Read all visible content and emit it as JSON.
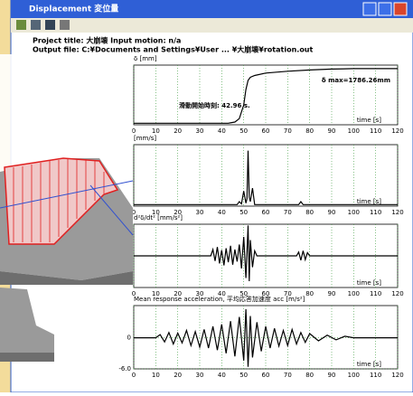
{
  "window": {
    "title": "Displacement 変位量",
    "header": [
      "Project title: 大崩壊  Input motion: n/a",
      "Output file: C:¥Documents and Settings¥User ... ¥大崩壊¥rotation.out"
    ]
  },
  "chart_data": [
    {
      "type": "line",
      "y_label": "δ [mm]",
      "x_label": "time [s]",
      "color": "#000000",
      "annotations": [
        "δ max=1786.26mm",
        "滑動開始時刻: 42.96 s."
      ],
      "x": [
        0,
        10,
        20,
        30,
        40,
        42.96,
        46,
        48,
        50,
        51,
        52,
        53,
        55,
        60,
        70,
        80,
        90,
        100,
        110,
        120
      ],
      "values": [
        0,
        0,
        0,
        0,
        0,
        0,
        40,
        150,
        600,
        1100,
        1400,
        1500,
        1560,
        1640,
        1700,
        1740,
        1770,
        1786,
        1786,
        1786
      ],
      "xlim": [
        0,
        120
      ],
      "ylim": [
        -50,
        1900
      ],
      "xticks": [
        0,
        10,
        20,
        30,
        40,
        50,
        60,
        70,
        80,
        90,
        100,
        110,
        120
      ],
      "grid": true
    },
    {
      "type": "line",
      "y_label": "[mm/s]",
      "x_label": "time [s]",
      "color": "#000000",
      "x": [
        0,
        44,
        47,
        48,
        49,
        50,
        51,
        51.5,
        52,
        52.5,
        53,
        54,
        55,
        58,
        75,
        76,
        77,
        78,
        120
      ],
      "values": [
        0,
        0,
        0,
        4,
        1,
        18,
        2,
        8,
        72,
        10,
        4,
        22,
        0,
        0,
        0,
        4,
        0,
        0,
        0
      ],
      "xlim": [
        0,
        120
      ],
      "ylim": [
        -2,
        80
      ],
      "xticks": [
        0,
        10,
        20,
        30,
        40,
        50,
        60,
        70,
        80,
        90,
        100,
        110,
        120
      ],
      "grid": true
    },
    {
      "type": "line",
      "y_label": "d²δ/dt² [mm/s²]",
      "x_label": "time [s]",
      "color": "#000000",
      "x": [
        0,
        35,
        36,
        37,
        38,
        39,
        40,
        41,
        42,
        43,
        44,
        45,
        46,
        47,
        48,
        49,
        50,
        51,
        52,
        52.5,
        53,
        54,
        55,
        56,
        60,
        74,
        75,
        76,
        77,
        78,
        79,
        80,
        120
      ],
      "values": [
        0,
        0,
        10,
        -8,
        14,
        -12,
        9,
        -15,
        12,
        -10,
        16,
        -14,
        10,
        -9,
        18,
        -20,
        30,
        -35,
        48,
        -40,
        25,
        -18,
        8,
        0,
        0,
        0,
        6,
        -7,
        8,
        -6,
        5,
        0,
        0
      ],
      "xlim": [
        0,
        120
      ],
      "ylim": [
        -50,
        50
      ],
      "xticks": [
        0,
        10,
        20,
        30,
        40,
        50,
        60,
        70,
        80,
        90,
        100,
        110,
        120
      ],
      "grid": true
    },
    {
      "type": "line",
      "y_label": "Mean response acceleration, 平均応答加速度 acc [m/s²]",
      "x_label": "time [s]",
      "color": "#000000",
      "x": [
        0,
        10,
        12,
        14,
        16,
        18,
        20,
        22,
        24,
        26,
        28,
        30,
        32,
        34,
        36,
        38,
        40,
        42,
        44,
        46,
        48,
        50,
        51,
        52,
        53,
        54,
        56,
        58,
        60,
        62,
        64,
        66,
        68,
        70,
        72,
        74,
        76,
        78,
        80,
        84,
        88,
        92,
        96,
        100,
        120
      ],
      "values": [
        0,
        0,
        0.6,
        -0.8,
        1,
        -1.2,
        0.9,
        -1,
        1.4,
        -1.5,
        1.2,
        -1.8,
        1.6,
        -2,
        2.2,
        -2.4,
        2.6,
        -3,
        3.2,
        -3.6,
        4,
        -4.4,
        5.5,
        -5.6,
        4.2,
        -3.8,
        3,
        -2.6,
        2.2,
        -2,
        1.8,
        -1.6,
        1.4,
        -1.5,
        1.6,
        -1.2,
        1,
        -0.9,
        0.8,
        -0.6,
        0.5,
        -0.4,
        0.3,
        0,
        0
      ],
      "xlim": [
        0,
        120
      ],
      "ylim": [
        -6,
        6.2
      ],
      "yticks": [
        {
          "value": -6,
          "label": "-6.0"
        },
        0
      ],
      "xticks": [
        0,
        10,
        20,
        30,
        40,
        50,
        60,
        70,
        80,
        90,
        100,
        110,
        120
      ],
      "grid": true
    }
  ]
}
